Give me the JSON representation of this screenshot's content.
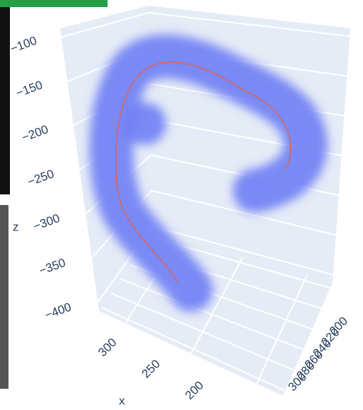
{
  "chart_data": {
    "type": "scatter3d",
    "zlabel": "z",
    "xlabel": "x",
    "zlim": [
      -410,
      -90
    ],
    "zticks": [
      {
        "value": -100,
        "label": "−100"
      },
      {
        "value": -150,
        "label": "−150"
      },
      {
        "value": -200,
        "label": "−200"
      },
      {
        "value": -250,
        "label": "−250"
      },
      {
        "value": -300,
        "label": "−300"
      },
      {
        "value": -350,
        "label": "−350"
      },
      {
        "value": -400,
        "label": "−400"
      }
    ],
    "xlim": [
      320,
      180
    ],
    "xticks": [
      300,
      250,
      200
    ],
    "ylim": [
      195,
      305
    ],
    "yticks": [
      200,
      220,
      240,
      260,
      280,
      300
    ],
    "grid": true
  }
}
